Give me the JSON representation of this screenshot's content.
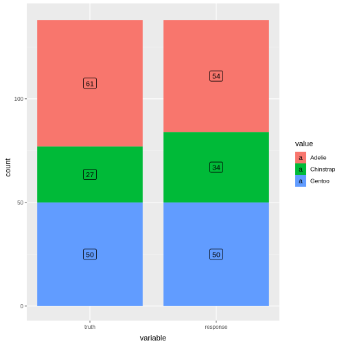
{
  "chart_data": {
    "type": "bar",
    "stacked": true,
    "categories": [
      "truth",
      "response"
    ],
    "series": [
      {
        "name": "Gentoo",
        "values": [
          50,
          50
        ],
        "color": "#619CFF"
      },
      {
        "name": "Chinstrap",
        "values": [
          27,
          34
        ],
        "color": "#00BA38"
      },
      {
        "name": "Adelie",
        "values": [
          61,
          54
        ],
        "color": "#F8766D"
      }
    ],
    "xlabel": "variable",
    "ylabel": "count",
    "legend_title": "value",
    "legend_key_glyph": "a",
    "legend_position": "right",
    "ylim": [
      -7,
      146
    ],
    "yticks": [
      0,
      50,
      100
    ],
    "grid": true,
    "panel_background": "#EBEBEB"
  }
}
